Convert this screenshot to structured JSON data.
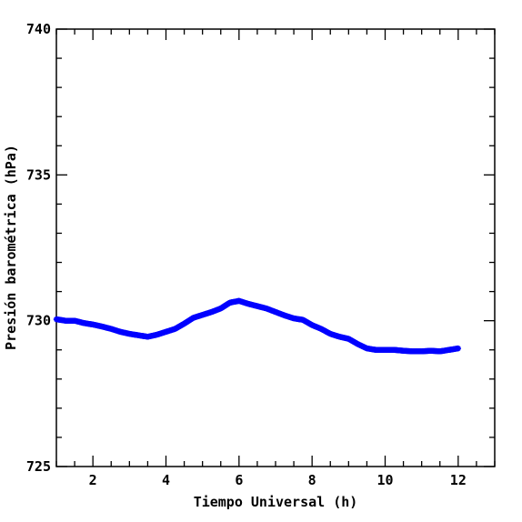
{
  "chart_data": {
    "type": "scatter",
    "xlabel": "Tiempo Universal (h)",
    "ylabel": "Presión barométrica (hPa)",
    "xlim": [
      1,
      13
    ],
    "ylim": [
      725,
      740
    ],
    "x_ticks": [
      2,
      4,
      6,
      8,
      10,
      12
    ],
    "x_tick_labels": [
      "2",
      "4",
      "6",
      "8",
      "10",
      "12"
    ],
    "y_ticks": [
      725,
      730,
      735,
      740
    ],
    "y_tick_labels": [
      "725",
      "730",
      "735",
      "740"
    ],
    "grid": false,
    "series": [
      {
        "color": "#0000ff",
        "x": [
          1.0,
          1.25,
          1.5,
          1.75,
          2.0,
          2.25,
          2.5,
          2.75,
          3.0,
          3.25,
          3.5,
          3.75,
          4.0,
          4.25,
          4.5,
          4.75,
          5.0,
          5.25,
          5.5,
          5.75,
          6.0,
          6.25,
          6.5,
          6.75,
          7.0,
          7.25,
          7.5,
          7.75,
          8.0,
          8.25,
          8.5,
          8.75,
          9.0,
          9.25,
          9.5,
          9.75,
          10.0,
          10.25,
          10.5,
          10.75,
          11.0,
          11.25,
          11.5,
          11.75,
          12.0
        ],
        "y": [
          730.05,
          730.0,
          730.0,
          729.92,
          729.87,
          729.8,
          729.72,
          729.62,
          729.55,
          729.5,
          729.45,
          729.52,
          729.62,
          729.72,
          729.9,
          730.1,
          730.2,
          730.3,
          730.42,
          730.62,
          730.68,
          730.58,
          730.5,
          730.42,
          730.3,
          730.18,
          730.08,
          730.03,
          729.85,
          729.72,
          729.55,
          729.45,
          729.38,
          729.2,
          729.05,
          729.0,
          729.0,
          729.0,
          728.97,
          728.95,
          728.95,
          728.97,
          728.95,
          729.0,
          729.05
        ]
      }
    ]
  }
}
